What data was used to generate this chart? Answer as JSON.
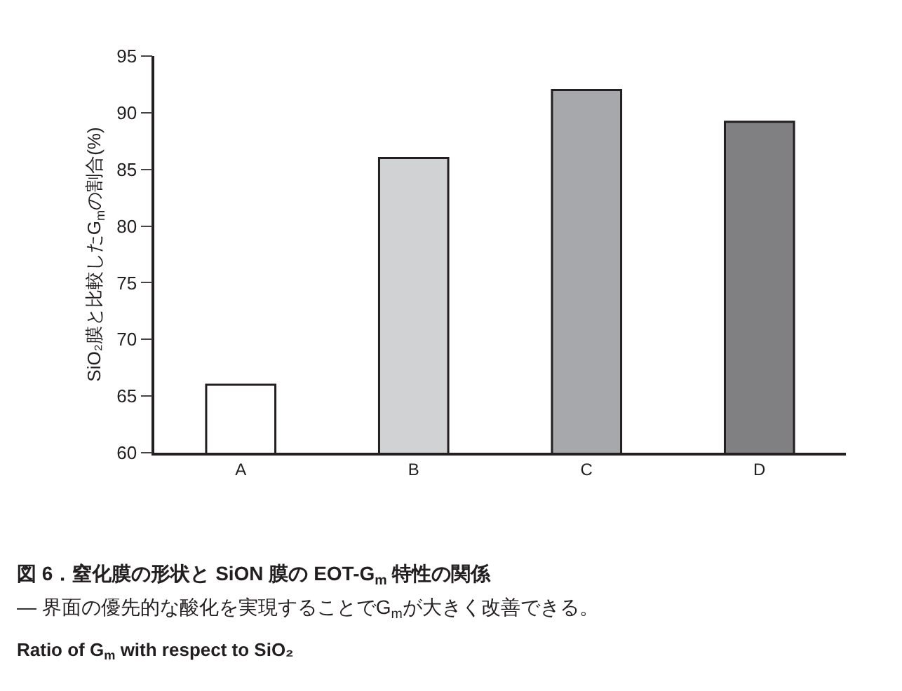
{
  "chart_data": {
    "type": "bar",
    "title": "図 6．窒化膜の形状と SiON 膜の EOT-G$_{m}$ 特性の関係",
    "subtitle": "— 界面の優先的な酸化を実現することでG$_{m}$が大きく改善できる。",
    "annotations": [
      "Ratio of G$_{m}$ with respect to SiO₂"
    ],
    "ylabel": "SiO₂膜と比較したG$_{m}$の割合(%)",
    "categories": [
      "A",
      "B",
      "C",
      "D"
    ],
    "values": [
      66,
      86,
      92,
      89.2
    ],
    "colors": [
      "#ffffff",
      "#d1d2d4",
      "#a7a8ab",
      "#808083"
    ],
    "ylim": [
      60,
      95
    ],
    "yticks": [
      60,
      65,
      70,
      75,
      80,
      85,
      90,
      95
    ]
  }
}
